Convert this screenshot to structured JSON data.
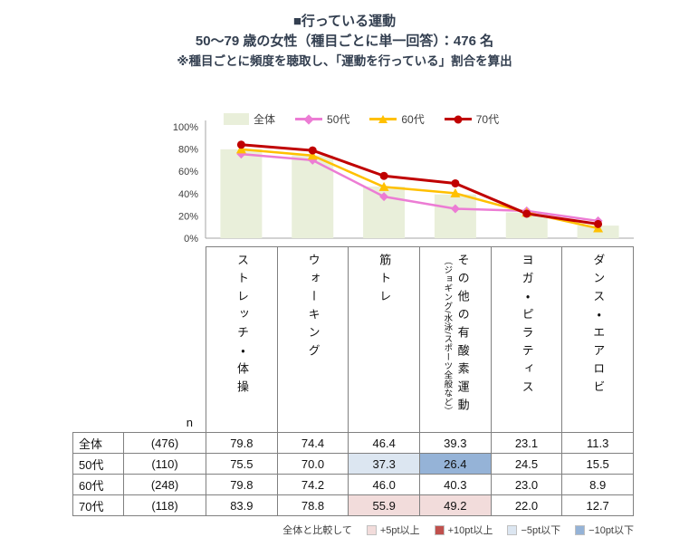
{
  "header": {
    "title": "■行っている運動",
    "subtitle": "50～79 歳の女性（種目ごとに単一回答）：476 名",
    "note": "※種目ごとに頻度を聴取し、「運動を行っている」割合を算出"
  },
  "chart_data": {
    "type": "bar+line",
    "categories": [
      "ストレッチ・体操",
      "ウォーキング",
      "筋トレ",
      "その他の有酸素運動（ジョギング/水泳/スポーツ全般など）",
      "ヨガ・ピラティス",
      "ダンス・エアロビ"
    ],
    "series": [
      {
        "name": "全体",
        "type": "bar",
        "marker": "none",
        "color": "#e9efda",
        "values": [
          79.8,
          74.4,
          46.4,
          39.3,
          23.1,
          11.3
        ]
      },
      {
        "name": "50代",
        "type": "line",
        "marker": "diamond",
        "color": "#ec7cd4",
        "values": [
          75.5,
          70.0,
          37.3,
          26.4,
          24.5,
          15.5
        ]
      },
      {
        "name": "60代",
        "type": "line",
        "marker": "triangle",
        "color": "#ffc000",
        "values": [
          79.8,
          74.2,
          46.0,
          40.3,
          23.0,
          8.9
        ]
      },
      {
        "name": "70代",
        "type": "line",
        "marker": "circle",
        "color": "#c00000",
        "values": [
          83.9,
          78.8,
          55.9,
          49.2,
          22.0,
          12.7
        ]
      }
    ],
    "ylim": [
      0,
      100
    ],
    "yticks": [
      "100%",
      "80%",
      "60%",
      "40%",
      "20%",
      "0%"
    ],
    "legend_position": "top",
    "grid": false
  },
  "table": {
    "n_label": "n",
    "col_headers": [
      {
        "main": "ストレッチ・体操",
        "sub": ""
      },
      {
        "main": "ウォーキング",
        "sub": ""
      },
      {
        "main": "筋トレ",
        "sub": ""
      },
      {
        "main": "その他の有酸素運動",
        "sub": "（ジョギング/水泳/スポーツ全般など）"
      },
      {
        "main": "ヨガ・ピラティス",
        "sub": ""
      },
      {
        "main": "ダンス・エアロビ",
        "sub": ""
      }
    ],
    "rows": [
      {
        "label": "全体",
        "n": "(476)",
        "values": [
          "79.8",
          "74.4",
          "46.4",
          "39.3",
          "23.1",
          "11.3"
        ]
      },
      {
        "label": "50代",
        "n": "(110)",
        "values": [
          "75.5",
          "70.0",
          "37.3",
          "26.4",
          "24.5",
          "15.5"
        ]
      },
      {
        "label": "60代",
        "n": "(248)",
        "values": [
          "79.8",
          "74.2",
          "46.0",
          "40.3",
          "23.0",
          "8.9"
        ]
      },
      {
        "label": "70代",
        "n": "(118)",
        "values": [
          "83.9",
          "78.8",
          "55.9",
          "49.2",
          "22.0",
          "12.7"
        ]
      }
    ],
    "highlights": [
      {
        "row": 1,
        "col": 2,
        "level": "-5pt"
      },
      {
        "row": 1,
        "col": 3,
        "level": "-10pt"
      },
      {
        "row": 3,
        "col": 2,
        "level": "+5pt"
      },
      {
        "row": 3,
        "col": 3,
        "level": "+5pt"
      }
    ]
  },
  "diff_legend": {
    "prefix": "全体と比較して",
    "items": [
      {
        "level": "+5pt",
        "label": "+5pt以上",
        "color": "#f2dcdb"
      },
      {
        "level": "+10pt",
        "label": "+10pt以上",
        "color": "#c0504d"
      },
      {
        "level": "-5pt",
        "label": "−5pt以下",
        "color": "#dce6f1"
      },
      {
        "level": "-10pt",
        "label": "−10pt以下",
        "color": "#95b3d7"
      }
    ]
  },
  "colors": {
    "title_text": "#333f50",
    "axis_text": "#404040",
    "axis_line": "#a6a6a6",
    "table_border": "#808080"
  }
}
